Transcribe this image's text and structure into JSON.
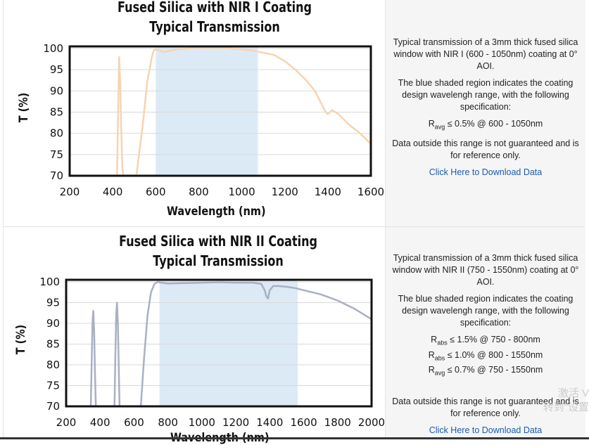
{
  "panels": [
    {
      "title_line1": "Fused Silica with NIR I Coating",
      "title_line2": "Typical Transmission",
      "info": {
        "description": "Typical transmission of a 3mm thick fused silica window with NIR I (600 - 1050nm) coating at 0° AOI.",
        "shaded_note": "The blue shaded region indicates the coating design wavelengh range, with the following specification:",
        "specs": [
          {
            "symbol": "R",
            "sub": "avg",
            "text": "≤ 0.5% @ 600 - 1050nm"
          }
        ],
        "outside_note": "Data outside this range is not guaranteed and is for reference only.",
        "download_link": "Click Here to Download Data"
      }
    },
    {
      "title_line1": "Fused Silica with NIR II Coating",
      "title_line2": "Typical Transmission",
      "info": {
        "description": "Typical transmission of a 3mm thick fused silica window with NIR II (750 - 1550nm) coating at 0° AOI.",
        "shaded_note": "The blue shaded region indicates the coating design wavelengh range, with the following specification:",
        "specs": [
          {
            "symbol": "R",
            "sub": "abs",
            "text": "≤ 1.5% @ 750 - 800nm"
          },
          {
            "symbol": "R",
            "sub": "abs",
            "text": "≤ 1.0% @ 800 - 1550nm"
          },
          {
            "symbol": "R",
            "sub": "avg",
            "text": "≤ 0.7% @ 750 - 1550nm"
          }
        ],
        "outside_note": "Data outside this range is not guaranteed and is for reference only.",
        "download_link": "Click Here to Download Data"
      }
    }
  ],
  "watermark": {
    "line1": "激活 V",
    "line2": "转到\"设置"
  },
  "colors": {
    "curve1": "#f7d4b0",
    "curve2": "#a9b0c2",
    "shade": "#dceaf6",
    "link": "#1a5bb0"
  },
  "chart_data": [
    {
      "type": "line",
      "title": "Fused Silica with NIR I Coating Typical Transmission",
      "xlabel": "Wavelength (nm)",
      "ylabel": "T (%)",
      "xlim": [
        200,
        1600
      ],
      "ylim": [
        70,
        100.5
      ],
      "xticks": [
        200,
        400,
        600,
        800,
        1000,
        1200,
        1400,
        1600
      ],
      "yticks": [
        70,
        75,
        80,
        85,
        90,
        95,
        100
      ],
      "shaded_range": [
        600,
        1075
      ],
      "grid": "horizontal",
      "series": [
        {
          "x": [
            420,
            425,
            430,
            435,
            440,
            445,
            450,
            510,
            540,
            560,
            580,
            590,
            600,
            620,
            640,
            700,
            800,
            900,
            1000,
            1050,
            1100,
            1150,
            1200,
            1250,
            1300,
            1340,
            1370,
            1390,
            1400,
            1420,
            1450,
            1500,
            1550,
            1600
          ],
          "y": [
            70,
            85,
            98,
            92,
            80,
            72,
            70,
            70,
            82,
            92,
            97.5,
            99.5,
            99.8,
            99.5,
            99.2,
            99.8,
            100.2,
            100.2,
            99.8,
            99.5,
            99,
            98.5,
            97,
            95,
            92.5,
            90,
            87,
            85,
            84.5,
            85.5,
            84.5,
            82,
            80,
            77.5
          ]
        }
      ]
    },
    {
      "type": "line",
      "title": "Fused Silica with NIR II Coating Typical Transmission",
      "xlabel": "Wavelength (nm)",
      "ylabel": "T (%)",
      "xlim": [
        200,
        2000
      ],
      "ylim": [
        70,
        100.5
      ],
      "xticks": [
        200,
        400,
        600,
        800,
        1000,
        1200,
        1400,
        1600,
        1800,
        2000
      ],
      "yticks": [
        70,
        75,
        80,
        85,
        90,
        95,
        100
      ],
      "shaded_range": [
        750,
        1565
      ],
      "grid": "horizontal",
      "series": [
        {
          "x": [
            345,
            350,
            355,
            360,
            365,
            370,
            375,
            485,
            490,
            495,
            500,
            505,
            510,
            515,
            640,
            660,
            680,
            700,
            720,
            740,
            760,
            800,
            900,
            1000,
            1100,
            1200,
            1300,
            1350,
            1370,
            1380,
            1390,
            1400,
            1420,
            1450,
            1500,
            1550,
            1600,
            1700,
            1800,
            1900,
            2000
          ],
          "y": [
            70,
            80,
            90,
            93,
            88,
            78,
            70,
            70,
            82,
            92,
            95,
            90,
            80,
            70,
            70,
            82,
            92,
            97.5,
            99.5,
            100,
            99.8,
            99.6,
            99.7,
            99.8,
            99.9,
            99.8,
            99.8,
            99.5,
            98,
            96.5,
            96,
            98,
            99,
            99,
            98.8,
            98.5,
            98,
            97,
            95.5,
            93.5,
            91
          ]
        }
      ]
    }
  ]
}
